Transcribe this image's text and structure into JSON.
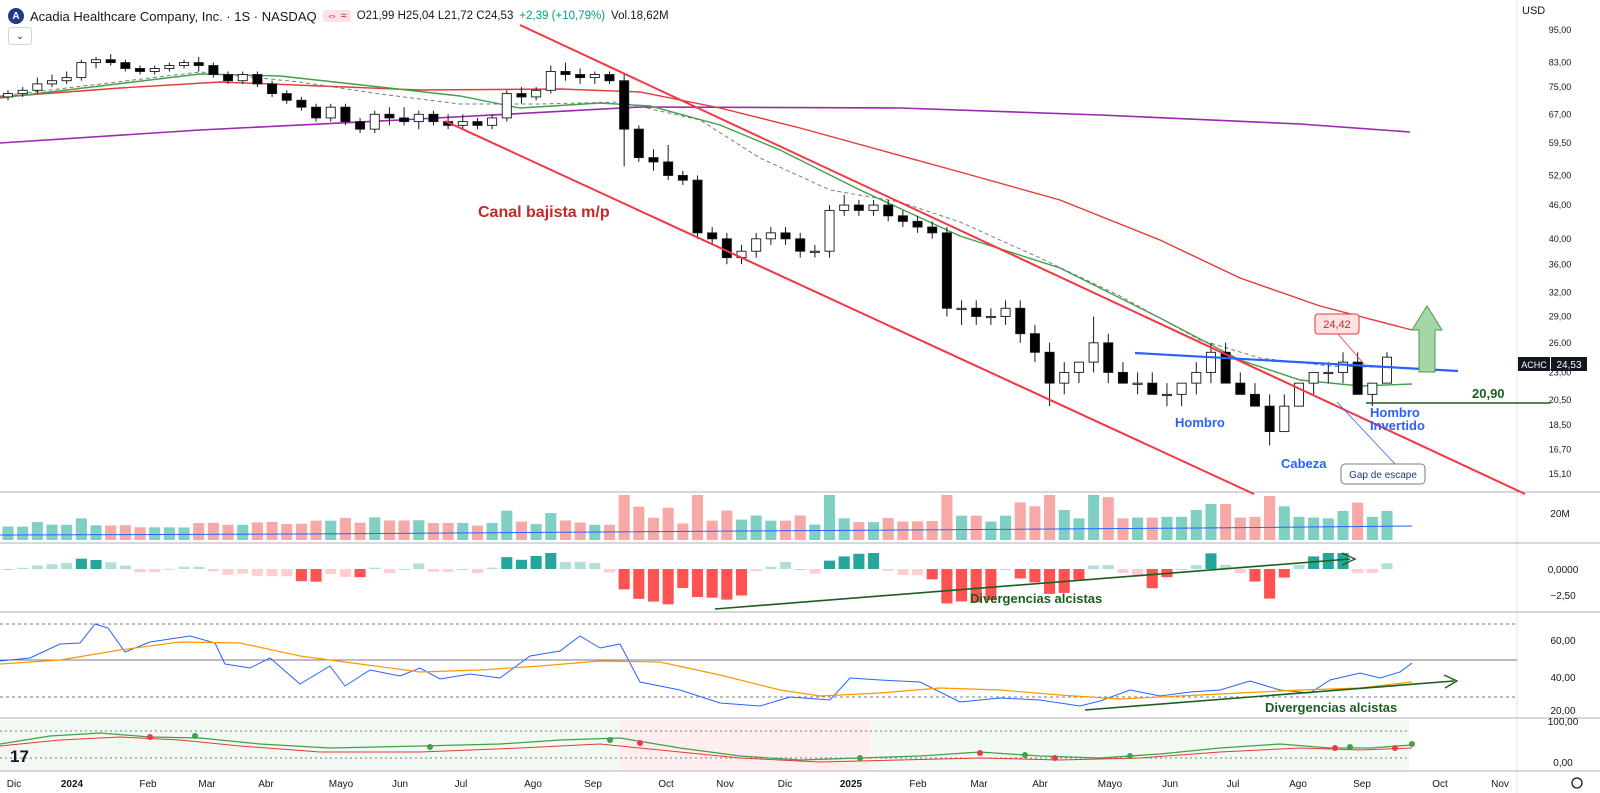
{
  "header": {
    "logo_letter": "A",
    "title": "Acadia Healthcare Company, Inc. · 1S · NASDAQ",
    "badge": "⇔ ≈",
    "ohlc": "O21,99 H25,04 L21,72 C24,53",
    "change": "+2,39 (+10,79%)",
    "volume": "Vol.18,62M",
    "currency": "USD",
    "dropdown_icon": "chevron-down-icon"
  },
  "colors": {
    "up": "#089981",
    "down": "#000000",
    "ma_green": "#43a047",
    "ma_red": "#e53935",
    "ma_purple": "#9c27b0",
    "channel": "#f23645",
    "neckline": "#2962ff",
    "vol_up": "#7fcfc3",
    "vol_down": "#f7a9a7",
    "rsi": "#2962ff",
    "rsi_ma": "#ff9800"
  },
  "chart_data": {
    "type": "candlestick",
    "symbol": "ACHC",
    "last_price_label": "24,53",
    "y_scale": "log",
    "price_ticks": [
      "95,00",
      "83,00",
      "75,00",
      "67,00",
      "59,50",
      "52,00",
      "46,00",
      "40,00",
      "36,00",
      "32,00",
      "29,00",
      "26,00",
      "23,00",
      "20,50",
      "18,50",
      "16,70",
      "15,10"
    ],
    "x_labels": [
      "Dic",
      "2024",
      "Feb",
      "Mar",
      "Abr",
      "Mayo",
      "Jun",
      "Jul",
      "Ago",
      "Sep",
      "Oct",
      "Nov",
      "Dic",
      "2025",
      "Feb",
      "Mar",
      "Abr",
      "Mayo",
      "Jun",
      "Jul",
      "Ago",
      "Sep",
      "Oct",
      "Nov"
    ],
    "candles": [
      [
        72,
        74,
        71,
        73
      ],
      [
        73,
        75,
        72,
        74
      ],
      [
        74,
        78,
        73,
        76
      ],
      [
        76,
        79,
        75,
        77
      ],
      [
        77,
        80,
        76,
        78
      ],
      [
        78,
        84,
        77,
        83
      ],
      [
        83,
        85,
        81,
        84
      ],
      [
        84,
        86,
        82,
        83
      ],
      [
        83,
        84,
        80,
        81
      ],
      [
        81,
        82,
        79,
        80
      ],
      [
        80,
        82,
        79,
        81
      ],
      [
        81,
        83,
        80,
        82
      ],
      [
        82,
        84,
        81,
        83
      ],
      [
        83,
        85,
        80,
        82
      ],
      [
        82,
        83,
        78,
        79
      ],
      [
        79,
        80,
        76,
        77
      ],
      [
        77,
        80,
        76,
        79
      ],
      [
        79,
        80,
        75,
        76
      ],
      [
        76,
        77,
        72,
        73
      ],
      [
        73,
        74,
        70,
        71
      ],
      [
        71,
        72,
        68,
        69
      ],
      [
        69,
        70,
        65,
        66
      ],
      [
        66,
        70,
        65,
        69
      ],
      [
        69,
        70,
        64,
        65
      ],
      [
        65,
        66,
        62,
        63
      ],
      [
        63,
        68,
        62,
        67
      ],
      [
        67,
        69,
        64,
        66
      ],
      [
        66,
        69,
        64,
        65
      ],
      [
        65,
        68,
        63,
        67
      ],
      [
        67,
        68,
        64,
        65
      ],
      [
        65,
        67,
        63,
        64
      ],
      [
        64,
        67,
        63,
        65
      ],
      [
        65,
        66,
        63,
        64
      ],
      [
        64,
        67,
        63,
        66
      ],
      [
        66,
        74,
        65,
        73
      ],
      [
        73,
        75,
        70,
        72
      ],
      [
        72,
        75,
        71,
        74
      ],
      [
        74,
        82,
        73,
        80
      ],
      [
        80,
        83,
        77,
        79
      ],
      [
        79,
        81,
        76,
        78
      ],
      [
        78,
        80,
        76,
        79
      ],
      [
        79,
        80,
        76,
        77
      ],
      [
        77,
        79,
        54,
        63
      ],
      [
        63,
        64,
        55,
        56
      ],
      [
        56,
        58,
        53,
        55
      ],
      [
        55,
        59,
        51,
        52
      ],
      [
        52,
        53,
        50,
        51
      ],
      [
        51,
        52,
        40,
        41
      ],
      [
        41,
        42,
        39,
        40
      ],
      [
        40,
        41,
        36,
        37
      ],
      [
        37,
        39,
        36,
        38
      ],
      [
        38,
        41,
        37,
        40
      ],
      [
        40,
        42,
        39,
        41
      ],
      [
        41,
        42,
        39,
        40
      ],
      [
        40,
        41,
        37,
        38
      ],
      [
        38,
        39,
        37,
        38
      ],
      [
        38,
        46,
        37,
        45
      ],
      [
        45,
        48,
        44,
        46
      ],
      [
        46,
        47,
        44,
        45
      ],
      [
        45,
        47,
        44,
        46
      ],
      [
        46,
        47,
        43,
        44
      ],
      [
        44,
        45,
        42,
        43
      ],
      [
        43,
        44,
        41,
        42
      ],
      [
        42,
        43,
        40,
        41
      ],
      [
        41,
        42,
        29,
        30
      ],
      [
        30,
        31,
        28,
        30
      ],
      [
        30,
        31,
        28,
        29
      ],
      [
        29,
        30,
        28,
        29
      ],
      [
        29,
        31,
        28,
        30
      ],
      [
        30,
        31,
        26,
        27
      ],
      [
        27,
        28,
        24,
        25
      ],
      [
        25,
        26,
        20,
        22
      ],
      [
        22,
        24,
        21,
        23
      ],
      [
        23,
        24,
        22,
        24
      ],
      [
        24,
        29,
        23,
        26
      ],
      [
        26,
        27,
        22,
        23
      ],
      [
        23,
        24,
        22,
        22
      ],
      [
        22,
        23,
        21,
        22
      ],
      [
        22,
        23,
        21,
        21
      ],
      [
        21,
        22,
        20,
        21
      ],
      [
        21,
        22,
        20,
        22
      ],
      [
        22,
        24,
        21,
        23
      ],
      [
        23,
        26,
        22,
        25
      ],
      [
        25,
        26,
        22,
        22
      ],
      [
        22,
        23,
        21,
        21
      ],
      [
        21,
        22,
        20,
        20
      ],
      [
        20,
        21,
        17,
        18
      ],
      [
        18,
        21,
        18,
        20
      ],
      [
        20,
        22,
        20,
        22
      ],
      [
        22,
        23,
        21,
        23
      ],
      [
        23,
        24,
        22,
        23
      ],
      [
        23,
        25,
        22,
        24
      ],
      [
        24,
        25,
        21,
        21
      ],
      [
        21,
        22,
        20,
        22
      ],
      [
        22,
        25,
        22,
        24.5
      ]
    ],
    "volume_label": "20M",
    "macd_ticks": [
      "0,0000",
      "−2,50"
    ],
    "rsi_ticks": [
      "60,00",
      "40,00",
      "20,00"
    ],
    "stoch_ticks": [
      "100,00",
      "0,00"
    ],
    "annotations": {
      "channel": "Canal bajista m/p",
      "hombro_left": "Hombro",
      "cabeza": "Cabeza",
      "hombro_right_1": "Hombro",
      "hombro_right_2": "Invertido",
      "gap": "Gap de escape",
      "price_callout": "24,42",
      "level": "20,90",
      "div_macd": "Divergencias alcistas",
      "div_rsi": "Divergencias alcistas"
    }
  }
}
